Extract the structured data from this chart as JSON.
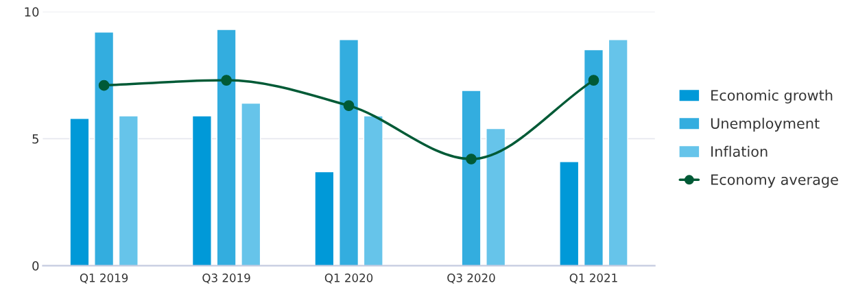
{
  "chart_data": {
    "type": "bar",
    "categories": [
      "Q1 2019",
      "Q3 2019",
      "Q1 2020",
      "Q3 2020",
      "Q1 2021"
    ],
    "series": [
      {
        "name": "Economic growth",
        "color": "#0099d8",
        "values": [
          5.8,
          5.9,
          3.7,
          null,
          4.1
        ]
      },
      {
        "name": "Unemployment",
        "color": "#33addf",
        "values": [
          9.2,
          9.3,
          8.9,
          6.9,
          8.5
        ]
      },
      {
        "name": "Inflation",
        "color": "#66c4ea",
        "values": [
          5.9,
          6.4,
          5.9,
          5.4,
          8.9
        ]
      },
      {
        "name": "Economy average",
        "color": "#005a36",
        "type": "line",
        "marker": "circle",
        "values": [
          7.1,
          7.3,
          6.3,
          4.2,
          7.3
        ]
      }
    ],
    "ylim": [
      0,
      10
    ],
    "yticks": [
      0,
      5,
      10
    ],
    "grid": "y",
    "legend": "right"
  }
}
